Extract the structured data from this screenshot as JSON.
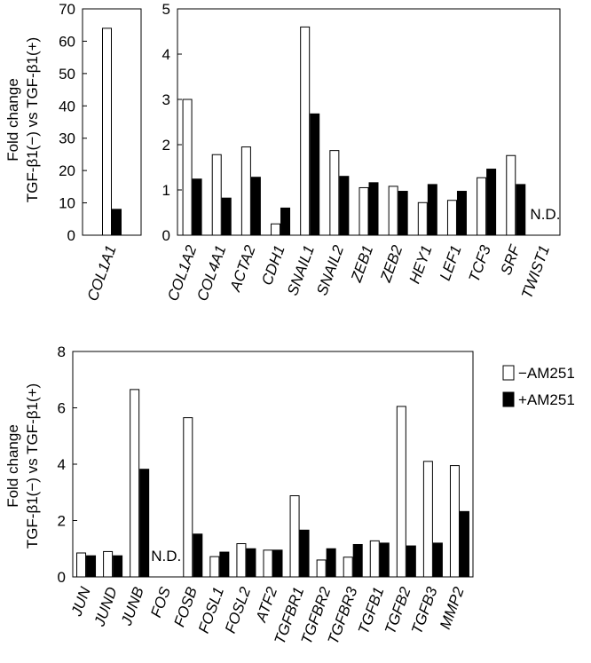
{
  "figure": {
    "ylabel_line1": "Fold change",
    "ylabel_line2": "TGF-β1(−) vs TGF-β1(+)",
    "legend": [
      {
        "name": "−AM251",
        "color": "#ffffff"
      },
      {
        "name": "+AM251",
        "color": "#000000"
      }
    ],
    "nd_label": "N.D."
  },
  "chart_data": [
    {
      "type": "bar",
      "categories": [
        "COL1A1"
      ],
      "series": [
        {
          "name": "−AM251",
          "values": [
            64
          ]
        },
        {
          "name": "+AM251",
          "values": [
            8
          ]
        }
      ],
      "ylim": [
        0,
        70
      ],
      "yticks": [
        0,
        10,
        20,
        30,
        40,
        50,
        60,
        70
      ],
      "xlabel": "",
      "ylabel": "Fold change TGF-β1(−) vs TGF-β1(+)"
    },
    {
      "type": "bar",
      "categories": [
        "COL1A2",
        "COL4A1",
        "ACTA2",
        "CDH1",
        "SNAIL1",
        "SNAIL2",
        "ZEB1",
        "ZEB2",
        "HEY1",
        "LEF1",
        "TCF3",
        "SRF",
        "TWIST1"
      ],
      "series": [
        {
          "name": "−AM251",
          "values": [
            3.0,
            1.78,
            1.95,
            0.25,
            4.6,
            1.87,
            1.05,
            1.08,
            0.72,
            0.77,
            1.27,
            1.76,
            null
          ]
        },
        {
          "name": "+AM251",
          "values": [
            1.24,
            0.82,
            1.28,
            0.6,
            2.68,
            1.3,
            1.16,
            0.97,
            1.12,
            0.97,
            1.46,
            1.12,
            null
          ]
        }
      ],
      "not_detected": [
        "TWIST1"
      ],
      "ylim": [
        0,
        5
      ],
      "yticks": [
        0,
        1,
        2,
        3,
        4,
        5
      ],
      "xlabel": "",
      "ylabel": ""
    },
    {
      "type": "bar",
      "categories": [
        "JUN",
        "JUND",
        "JUNB",
        "FOS",
        "FOSB",
        "FOSL1",
        "FOSL2",
        "ATF2",
        "TGFBR1",
        "TGFBR2",
        "TGFBR3",
        "TGFB1",
        "TGFB2",
        "TGFB3",
        "MMP2"
      ],
      "series": [
        {
          "name": "−AM251",
          "values": [
            0.85,
            0.9,
            6.65,
            null,
            5.65,
            0.72,
            1.18,
            0.95,
            2.88,
            0.6,
            0.7,
            1.28,
            6.05,
            4.1,
            3.95
          ]
        },
        {
          "name": "+AM251",
          "values": [
            0.75,
            0.75,
            3.82,
            null,
            1.52,
            0.88,
            1.0,
            0.95,
            1.66,
            1.0,
            1.15,
            1.2,
            1.1,
            1.2,
            2.32
          ]
        }
      ],
      "not_detected": [
        "FOS"
      ],
      "ylim": [
        0,
        8
      ],
      "yticks": [
        0,
        2,
        4,
        6,
        8
      ],
      "xlabel": "",
      "ylabel": "Fold change TGF-β1(−) vs TGF-β1(+)"
    }
  ]
}
